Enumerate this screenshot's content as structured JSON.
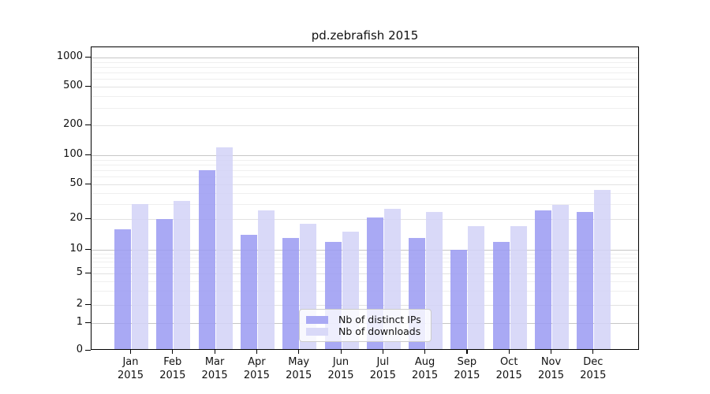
{
  "title": "pd.zebrafish 2015",
  "chart_data": {
    "type": "bar",
    "title": "pd.zebrafish 2015",
    "categories": [
      "Jan 2015",
      "Feb 2015",
      "Mar 2015",
      "Apr 2015",
      "May 2015",
      "Jun 2015",
      "Jul 2015",
      "Aug 2015",
      "Sep 2015",
      "Oct 2015",
      "Nov 2015",
      "Dec 2015"
    ],
    "months": [
      "Jan",
      "Feb",
      "Mar",
      "Apr",
      "May",
      "Jun",
      "Jul",
      "Aug",
      "Sep",
      "Oct",
      "Nov",
      "Dec"
    ],
    "year": "2015",
    "series": [
      {
        "name": "Nb of distinct IPs",
        "color": "#a9a9f4",
        "values": [
          16,
          20,
          70,
          14,
          13,
          12,
          21,
          13,
          10,
          12,
          25,
          24
        ]
      },
      {
        "name": "Nb of downloads",
        "color": "#d9d9f8",
        "values": [
          30,
          32,
          120,
          25,
          18,
          15,
          26,
          24,
          17,
          17,
          29,
          43
        ]
      }
    ],
    "y_ticks": [
      0,
      1,
      2,
      5,
      10,
      20,
      50,
      100,
      200,
      500,
      1000
    ],
    "y_minor_ticks": [
      3,
      4,
      6,
      7,
      8,
      9,
      30,
      40,
      60,
      70,
      80,
      90,
      300,
      400,
      600,
      700,
      800,
      900
    ],
    "y_decade_ticks": [
      1,
      10,
      100,
      1000
    ],
    "scale": "symlog",
    "ylim": [
      0,
      1400
    ],
    "grid": true,
    "legend_position": "lower center",
    "xlabel": "",
    "ylabel": ""
  }
}
